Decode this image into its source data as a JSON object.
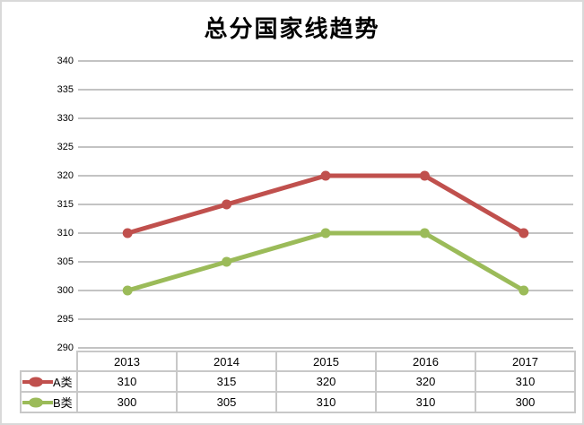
{
  "title": "总分国家线趋势",
  "colors": {
    "series_a": "#C0504D",
    "series_b": "#9BBB59",
    "gridline": "#C3C3C3",
    "table_border": "#C8C8C8",
    "outer_border": "#D9D9D9",
    "text": "#000000"
  },
  "y_axis": {
    "min": 290,
    "max": 340,
    "step": 5,
    "tick_labels": [
      "340",
      "335",
      "330",
      "325",
      "320",
      "315",
      "310",
      "305",
      "300",
      "295",
      "290"
    ]
  },
  "chart_data": {
    "type": "line",
    "title": "总分国家线趋势",
    "categories": [
      "2013",
      "2014",
      "2015",
      "2016",
      "2017"
    ],
    "series": [
      {
        "name": "A类",
        "values": [
          310,
          315,
          320,
          320,
          310
        ],
        "color": "#C0504D"
      },
      {
        "name": "B类",
        "values": [
          300,
          305,
          310,
          310,
          300
        ],
        "color": "#9BBB59"
      }
    ],
    "xlabel": "",
    "ylabel": "",
    "ylim": [
      290,
      340
    ],
    "y_step": 5,
    "grid": true,
    "marker": "circle",
    "legend_position": "data-table-left"
  },
  "data_table": {
    "columns": [
      "2013",
      "2014",
      "2015",
      "2016",
      "2017"
    ],
    "rows": [
      {
        "label": "A类",
        "values": [
          "310",
          "315",
          "320",
          "320",
          "310"
        ]
      },
      {
        "label": "B类",
        "values": [
          "300",
          "305",
          "310",
          "310",
          "300"
        ]
      }
    ]
  }
}
